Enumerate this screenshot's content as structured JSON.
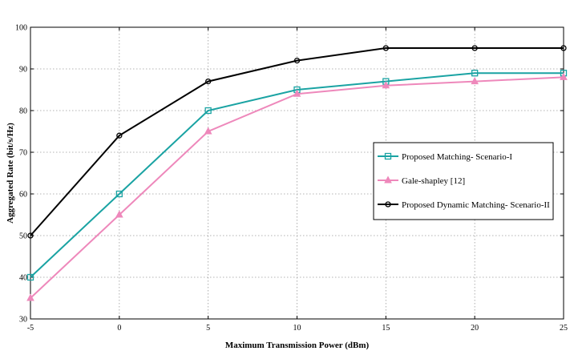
{
  "chart_data": {
    "type": "line",
    "title": "",
    "xlabel": "Maximum Transmission Power (dBm)",
    "ylabel": "Aggregated Rate (bit/s/Hz)",
    "x": [
      -5,
      0,
      5,
      10,
      15,
      20,
      25
    ],
    "xlim": [
      -5,
      25
    ],
    "ylim": [
      30,
      100
    ],
    "xticks": [
      -5,
      0,
      5,
      10,
      15,
      20,
      25
    ],
    "yticks": [
      30,
      40,
      50,
      60,
      70,
      80,
      90,
      100
    ],
    "grid": true,
    "legend_position": "center-right",
    "series": [
      {
        "name": "Proposed Matching- Scenario-I",
        "color": "#1aa3a3",
        "marker": "square",
        "values": [
          40,
          60,
          80,
          85,
          87,
          89,
          89
        ]
      },
      {
        "name": "Gale-shapley [12]",
        "color": "#ee88bb",
        "marker": "triangle",
        "values": [
          35,
          55,
          75,
          84,
          86,
          87,
          88
        ]
      },
      {
        "name": "Proposed Dynamic Matching- Scenario-II",
        "color": "#000000",
        "marker": "circle",
        "values": [
          50,
          74,
          87,
          92,
          95,
          95,
          95
        ]
      }
    ]
  }
}
